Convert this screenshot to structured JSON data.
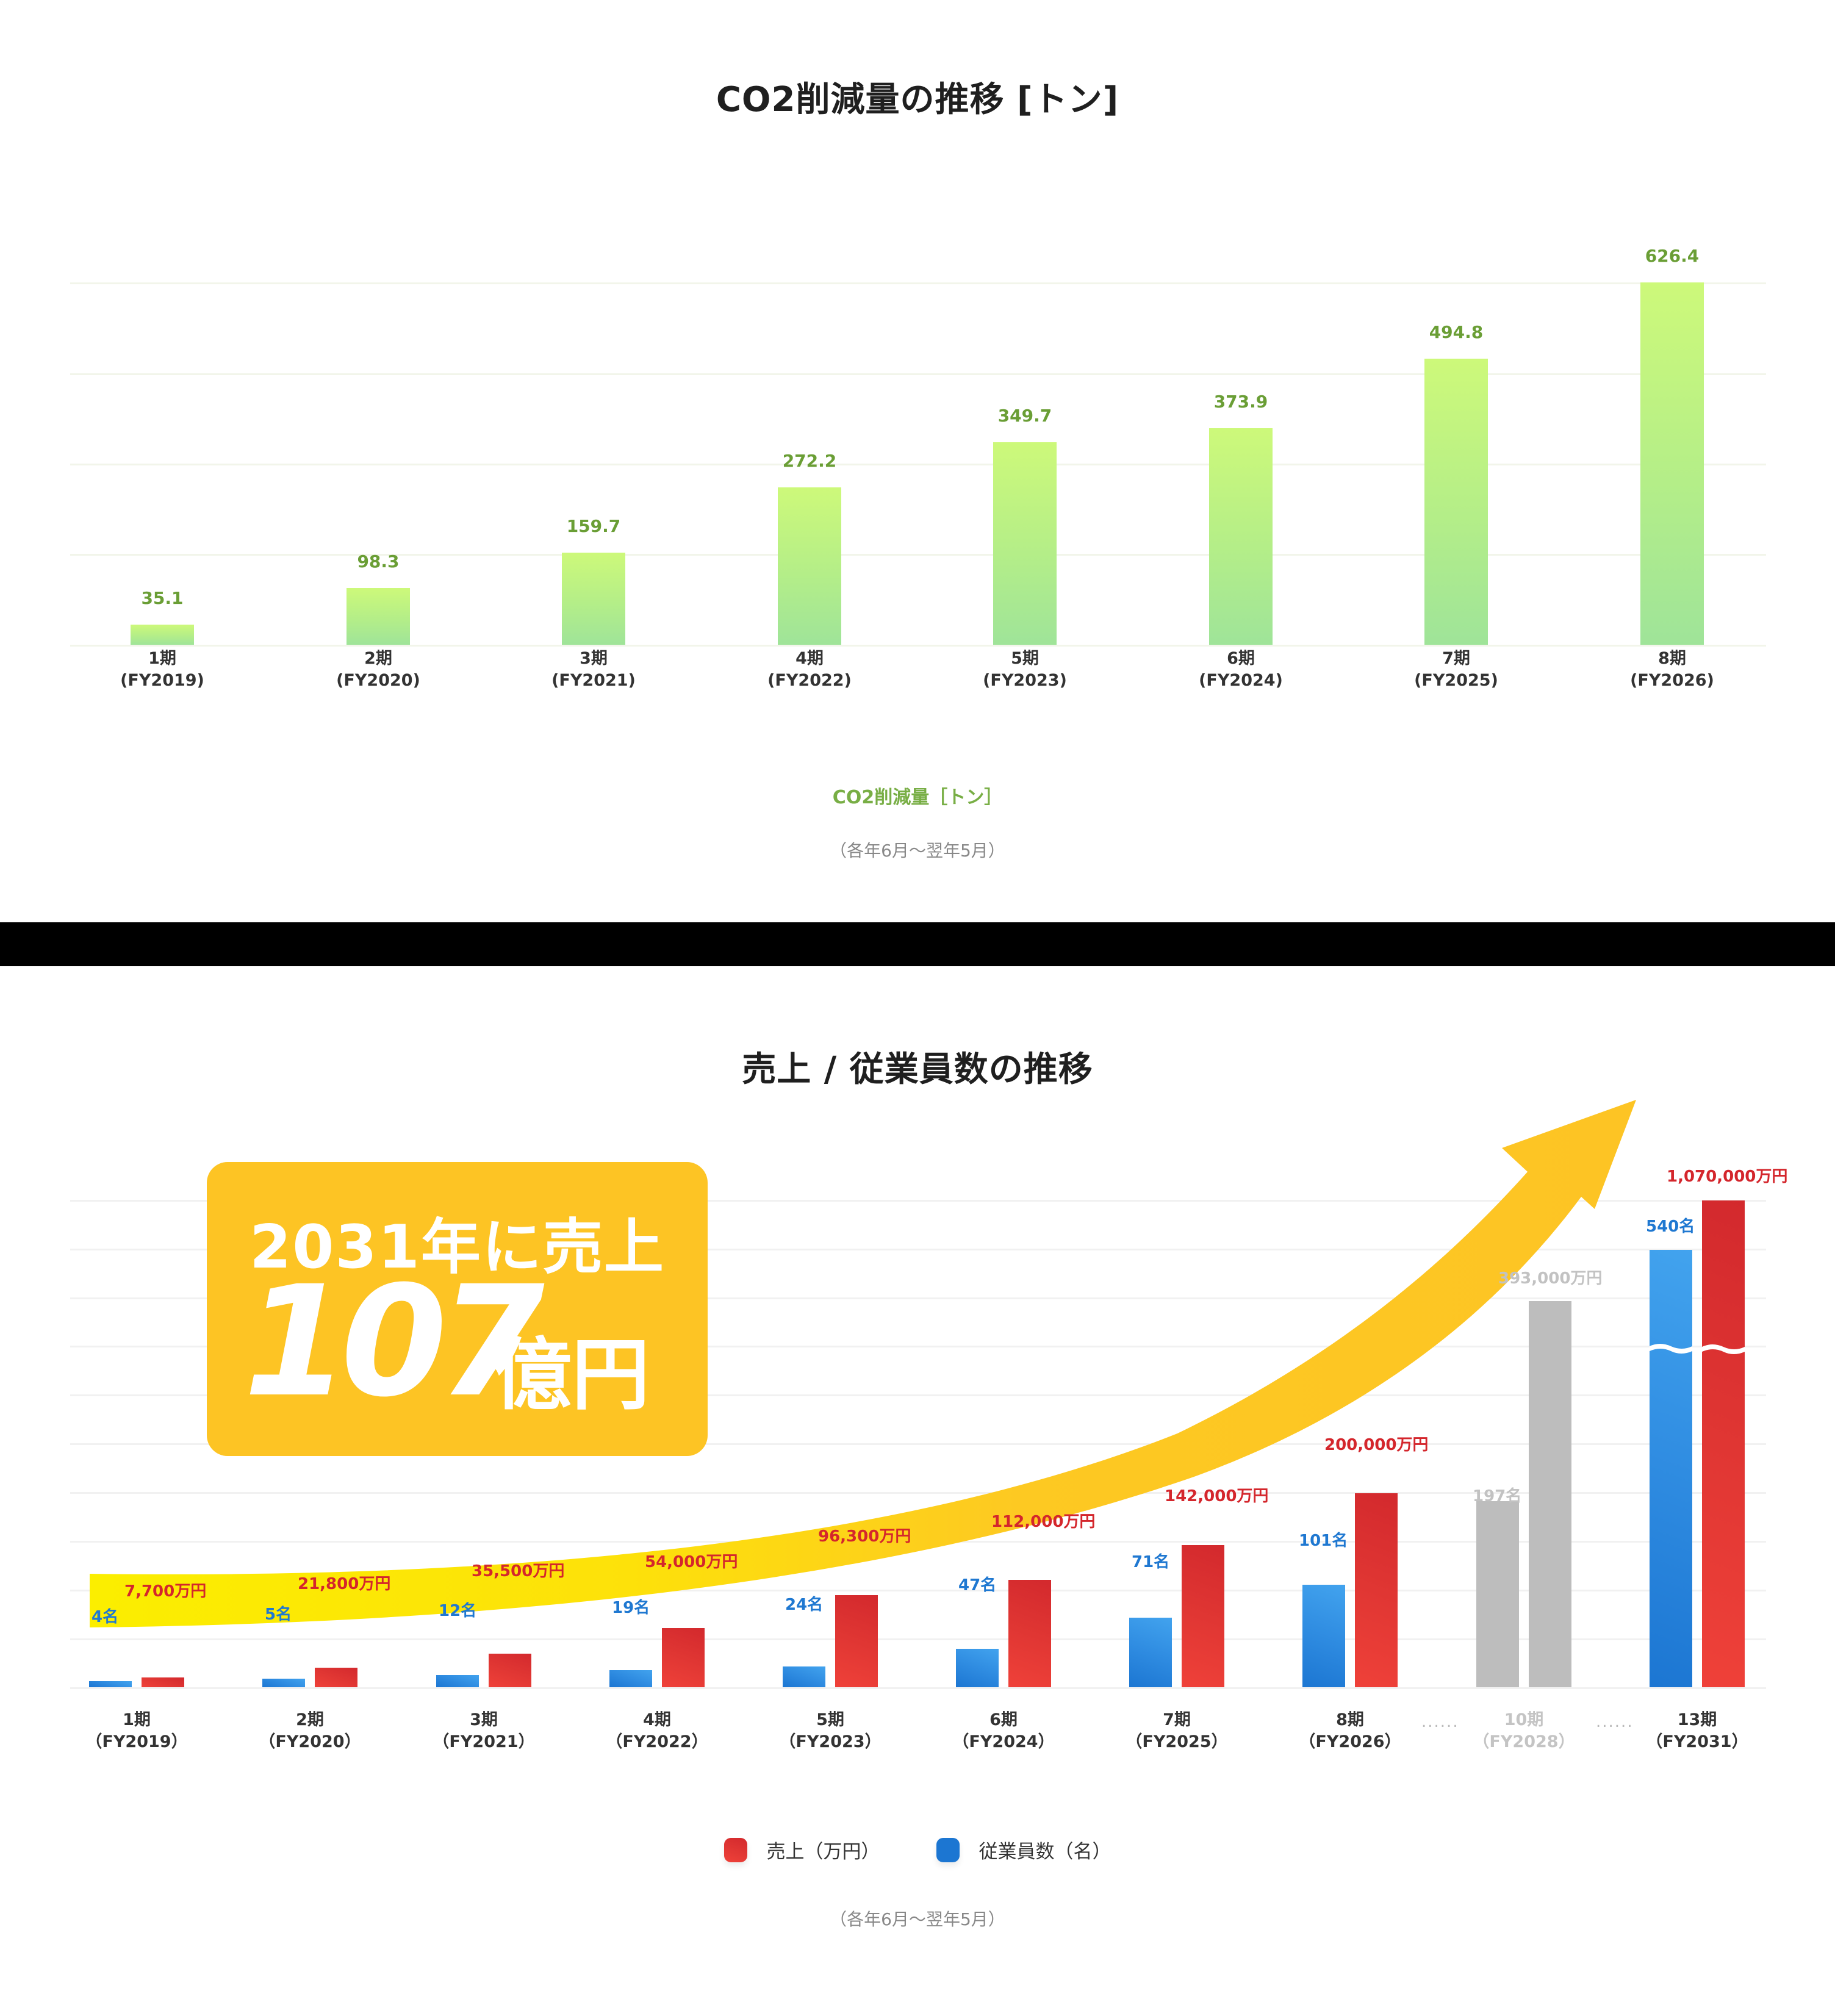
{
  "co2_section": {
    "title": "CO2削減量の推移 [トン]",
    "legend": "CO2削減量［トン］",
    "note": "（各年6月～翌年5月）",
    "categories": [
      {
        "period": "1期",
        "fy": "(FY2019)",
        "value": "35.1"
      },
      {
        "period": "2期",
        "fy": "(FY2020)",
        "value": "98.3"
      },
      {
        "period": "3期",
        "fy": "(FY2021)",
        "value": "159.7"
      },
      {
        "period": "4期",
        "fy": "(FY2022)",
        "value": "272.2"
      },
      {
        "period": "5期",
        "fy": "(FY2023)",
        "value": "349.7"
      },
      {
        "period": "6期",
        "fy": "(FY2024)",
        "value": "373.9"
      },
      {
        "period": "7期",
        "fy": "(FY2025)",
        "value": "494.8"
      },
      {
        "period": "8期",
        "fy": "(FY2026)",
        "value": "626.4"
      }
    ]
  },
  "sales_section": {
    "title": "売上 / 従業員数の推移",
    "callout": {
      "line1": "2031年に売上",
      "big_number": "107",
      "unit": "億円"
    },
    "legend": {
      "sales": "売上（万円）",
      "employees": "従業員数（名）"
    },
    "note": "（各年6月～翌年5月）",
    "ellipsis": "......",
    "categories": [
      {
        "period": "1期",
        "fy": "（FY2019）",
        "employees": "4名",
        "sales": "7,700万円"
      },
      {
        "period": "2期",
        "fy": "（FY2020）",
        "employees": "5名",
        "sales": "21,800万円"
      },
      {
        "period": "3期",
        "fy": "（FY2021）",
        "employees": "12名",
        "sales": "35,500万円"
      },
      {
        "period": "4期",
        "fy": "（FY2022）",
        "employees": "19名",
        "sales": "54,000万円"
      },
      {
        "period": "5期",
        "fy": "（FY2023）",
        "employees": "24名",
        "sales": "96,300万円"
      },
      {
        "period": "6期",
        "fy": "（FY2024）",
        "employees": "47名",
        "sales": "112,000万円"
      },
      {
        "period": "7期",
        "fy": "（FY2025）",
        "employees": "71名",
        "sales": "142,000万円"
      },
      {
        "period": "8期",
        "fy": "（FY2026）",
        "employees": "101名",
        "sales": "200,000万円"
      },
      {
        "period": "10期",
        "fy": "（FY2028）",
        "employees": "197名",
        "sales": "393,000万円"
      },
      {
        "period": "13期",
        "fy": "（FY2031）",
        "employees": "540名",
        "sales": "1,070,000万円"
      }
    ]
  },
  "colors": {
    "co2_bar_top": "#cdf97a",
    "co2_bar_bottom": "#9fe499",
    "co2_label": "#6a9e35",
    "sales_red": "#e03633",
    "employees_blue": "#1f78d1",
    "forecast_grey": "#bdbdbd",
    "callout_yellow": "#fdc424",
    "divider": "#000000"
  },
  "chart_data": [
    {
      "type": "bar",
      "title": "CO2削減量の推移 [トン]",
      "categories": [
        "1期 (FY2019)",
        "2期 (FY2020)",
        "3期 (FY2021)",
        "4期 (FY2022)",
        "5期 (FY2023)",
        "6期 (FY2024)",
        "7期 (FY2025)",
        "8期 (FY2026)"
      ],
      "series": [
        {
          "name": "CO2削減量［トン］",
          "values": [
            35.1,
            98.3,
            159.7,
            272.2,
            349.7,
            373.9,
            494.8,
            626.4
          ]
        }
      ],
      "xlabel": "",
      "ylabel": "トン",
      "ylim": [
        0,
        626.4
      ],
      "grid": true,
      "legend_position": "bottom",
      "annotations": [
        "（各年6月～翌年5月）"
      ]
    },
    {
      "type": "bar",
      "title": "売上 / 従業員数の推移",
      "categories": [
        "1期 (FY2019)",
        "2期 (FY2020)",
        "3期 (FY2021)",
        "4期 (FY2022)",
        "5期 (FY2023)",
        "6期 (FY2024)",
        "7期 (FY2025)",
        "8期 (FY2026)",
        "10期 (FY2028)",
        "13期 (FY2031)"
      ],
      "series": [
        {
          "name": "従業員数（名）",
          "values": [
            4,
            5,
            12,
            19,
            24,
            47,
            71,
            101,
            197,
            540
          ]
        },
        {
          "name": "売上（万円）",
          "values": [
            7700,
            21800,
            35500,
            54000,
            96300,
            112000,
            142000,
            200000,
            393000,
            1070000
          ]
        }
      ],
      "xlabel": "",
      "ylabel": "",
      "grid": true,
      "legend_position": "bottom",
      "notes": [
        "10期 is a projection (grey)",
        "13期 bars use an axis break (wavy cut)"
      ],
      "annotations": [
        "2031年に売上 107億円",
        "（各年6月～翌年5月）"
      ]
    }
  ]
}
